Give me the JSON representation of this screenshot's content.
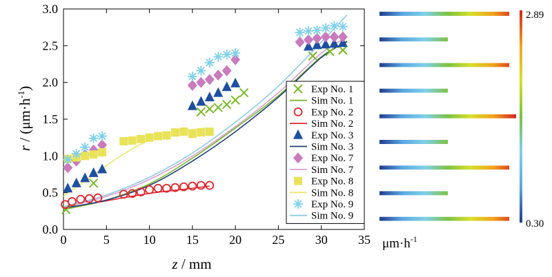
{
  "chart_data": {
    "type": "scatter",
    "xlabel_var": "z",
    "xlabel_unit": " / mm",
    "ylabel_var": "r",
    "ylabel_unit": " / (μm·h",
    "ylabel_exp": "-1",
    "ylabel_close": ")",
    "xlim": [
      0,
      35
    ],
    "ylim": [
      0,
      3.0
    ],
    "xticks": [
      "0",
      "5",
      "10",
      "15",
      "20",
      "25",
      "30",
      "35"
    ],
    "yticks": [
      "0.0",
      "0.5",
      "1.0",
      "1.5",
      "2.0",
      "2.5",
      "3.0"
    ],
    "grid": false,
    "legend_position": "bottom-right",
    "series": [
      {
        "name": "Exp No. 1",
        "kind": "exp",
        "marker": "x",
        "color": "#7ab829",
        "x": [
          0.3,
          3.5,
          16,
          17,
          18,
          19,
          20,
          21,
          29,
          31,
          32.5
        ],
        "y": [
          0.27,
          0.63,
          1.6,
          1.64,
          1.66,
          1.7,
          1.76,
          1.86,
          2.36,
          2.42,
          2.44
        ]
      },
      {
        "name": "Sim No. 1",
        "kind": "sim",
        "color": "#7ab829",
        "x": [
          0,
          5,
          10,
          15,
          20,
          25,
          30,
          33
        ],
        "y": [
          0.27,
          0.4,
          0.62,
          0.97,
          1.38,
          1.82,
          2.35,
          2.55
        ]
      },
      {
        "name": "Exp No. 2",
        "kind": "exp",
        "marker": "circle",
        "color": "#e0242a",
        "x": [
          0.2,
          1,
          2,
          3,
          4,
          7,
          8,
          9,
          10,
          11,
          12,
          13,
          14,
          15,
          16,
          17
        ],
        "y": [
          0.34,
          0.38,
          0.41,
          0.42,
          0.43,
          0.48,
          0.49,
          0.51,
          0.54,
          0.56,
          0.56,
          0.57,
          0.58,
          0.59,
          0.6,
          0.6
        ]
      },
      {
        "name": "Sim No. 2",
        "kind": "sim",
        "color": "#e0242a",
        "x": [
          0,
          5,
          10,
          15,
          17
        ],
        "y": [
          0.29,
          0.39,
          0.49,
          0.56,
          0.59
        ]
      },
      {
        "name": "Exp No. 3",
        "kind": "exp",
        "marker": "triangle",
        "color": "#1f4fa0",
        "x": [
          0.5,
          1.5,
          2.5,
          3.5,
          4.5,
          15,
          16,
          17,
          18,
          19,
          20,
          28.5,
          29.5,
          30.5,
          31.5,
          32.5
        ],
        "y": [
          0.56,
          0.63,
          0.7,
          0.77,
          0.82,
          1.68,
          1.74,
          1.8,
          1.86,
          1.94,
          1.99,
          2.49,
          2.51,
          2.52,
          2.53,
          2.54
        ]
      },
      {
        "name": "Sim No. 3",
        "kind": "sim",
        "color": "#1f3f7a",
        "x": [
          0,
          5,
          10,
          15,
          20,
          25,
          30,
          33
        ],
        "y": [
          0.29,
          0.4,
          0.6,
          0.93,
          1.33,
          1.8,
          2.34,
          2.56
        ]
      },
      {
        "name": "Exp No. 7",
        "kind": "exp",
        "marker": "diamond",
        "color": "#c87bbd",
        "x": [
          0.5,
          1.5,
          2.5,
          3.5,
          4.5,
          15,
          16,
          17,
          18,
          19,
          20,
          27.5,
          28.5,
          29.5,
          30.5,
          31.5,
          32.5
        ],
        "y": [
          0.84,
          0.93,
          1.02,
          1.08,
          1.15,
          1.96,
          2.0,
          2.04,
          2.1,
          2.16,
          2.31,
          2.55,
          2.58,
          2.6,
          2.62,
          2.62,
          2.62
        ]
      },
      {
        "name": "Sim No. 7",
        "kind": "sim",
        "color": "#d9a0d2",
        "x": [
          0,
          5,
          10,
          15,
          20,
          25,
          30,
          33
        ],
        "y": [
          0.3,
          0.45,
          0.68,
          1.0,
          1.4,
          1.86,
          2.4,
          2.62
        ]
      },
      {
        "name": "Exp No. 8",
        "kind": "exp",
        "marker": "square",
        "color": "#e9e35a",
        "x": [
          0.5,
          1.5,
          2.5,
          3.5,
          4.5,
          7,
          8,
          9,
          10,
          11,
          12,
          13,
          14,
          15,
          16,
          17
        ],
        "y": [
          0.96,
          0.98,
          1.0,
          1.02,
          1.05,
          1.2,
          1.21,
          1.23,
          1.25,
          1.27,
          1.28,
          1.32,
          1.33,
          1.3,
          1.32,
          1.33
        ]
      },
      {
        "name": "Sim No. 8",
        "kind": "sim",
        "color": "#eaea70",
        "x": [
          0,
          3,
          6,
          9,
          12,
          15,
          17
        ],
        "y": [
          0.45,
          0.7,
          0.95,
          1.16,
          1.3,
          1.36,
          1.38
        ]
      },
      {
        "name": "Exp No. 9",
        "kind": "exp",
        "marker": "asterisk",
        "color": "#7fd0ea",
        "x": [
          0.5,
          1.5,
          2.5,
          3.5,
          4.5,
          15,
          16,
          17,
          18,
          19,
          20,
          27.5,
          28.5,
          29.5,
          30.5,
          31.5,
          32.5
        ],
        "y": [
          0.95,
          1.03,
          1.12,
          1.24,
          1.27,
          2.08,
          2.16,
          2.27,
          2.35,
          2.38,
          2.4,
          2.68,
          2.7,
          2.71,
          2.74,
          2.77,
          2.76
        ]
      },
      {
        "name": "Sim No. 9",
        "kind": "sim",
        "color": "#8ecbe3",
        "x": [
          0,
          5,
          10,
          15,
          20,
          25,
          30,
          33
        ],
        "y": [
          0.31,
          0.47,
          0.71,
          1.04,
          1.46,
          1.95,
          2.55,
          2.92
        ]
      }
    ],
    "colorbar": {
      "max_label": "2.89",
      "min_label": "0.30",
      "unit_base": "μm·h",
      "unit_exp": "-1",
      "stops": [
        "#1f3d8f",
        "#5aa7e0",
        "#7fd0ea",
        "#7cc242",
        "#d6e02a",
        "#f2a21c",
        "#d1251f"
      ]
    },
    "bars": [
      {
        "fraction": 0.95
      },
      {
        "fraction": 0.5
      },
      {
        "fraction": 0.95
      },
      {
        "fraction": 0.5
      },
      {
        "fraction": 1.0
      },
      {
        "fraction": 0.5
      },
      {
        "fraction": 0.95
      },
      {
        "fraction": 0.5
      },
      {
        "fraction": 0.95
      }
    ]
  }
}
